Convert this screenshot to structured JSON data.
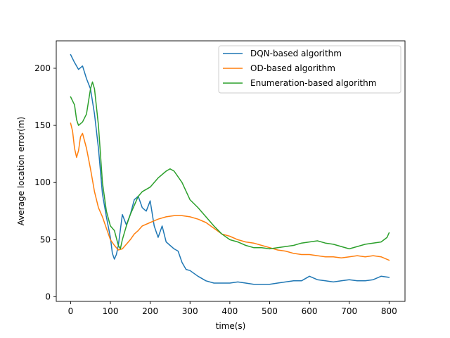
{
  "chart_data": {
    "type": "line",
    "title": "",
    "xlabel": "time(s)",
    "ylabel": "Average location error(m)",
    "xlim": [
      -36,
      840
    ],
    "ylim": [
      -4,
      224
    ],
    "xticks": [
      0,
      100,
      200,
      300,
      400,
      500,
      600,
      700,
      800
    ],
    "yticks": [
      0,
      50,
      100,
      150,
      200
    ],
    "grid": false,
    "legend_position": "top-right",
    "series": [
      {
        "name": "DQN-based algorithm",
        "color": "#1f77b4",
        "x": [
          0,
          10,
          20,
          30,
          40,
          50,
          60,
          70,
          80,
          90,
          100,
          105,
          110,
          115,
          120,
          130,
          140,
          150,
          160,
          170,
          180,
          190,
          200,
          210,
          220,
          230,
          240,
          250,
          260,
          270,
          280,
          290,
          300,
          320,
          340,
          360,
          380,
          400,
          420,
          440,
          460,
          480,
          500,
          520,
          540,
          560,
          580,
          600,
          620,
          640,
          660,
          680,
          700,
          720,
          740,
          760,
          780,
          800
        ],
        "values": [
          212,
          205,
          199,
          202,
          191,
          182,
          160,
          130,
          90,
          70,
          52,
          38,
          33,
          37,
          45,
          72,
          63,
          72,
          85,
          88,
          78,
          75,
          84,
          62,
          52,
          62,
          48,
          45,
          42,
          40,
          30,
          24,
          23,
          18,
          14,
          12,
          12,
          12,
          13,
          12,
          11,
          11,
          11,
          12,
          13,
          14,
          14,
          18,
          15,
          14,
          13,
          14,
          15,
          14,
          14,
          15,
          18,
          17
        ]
      },
      {
        "name": "OD-based algorithm",
        "color": "#ff7f0e",
        "x": [
          0,
          5,
          10,
          15,
          20,
          25,
          30,
          40,
          50,
          60,
          70,
          80,
          90,
          100,
          110,
          120,
          130,
          140,
          150,
          160,
          170,
          180,
          200,
          220,
          240,
          260,
          280,
          300,
          320,
          340,
          360,
          380,
          400,
          420,
          440,
          460,
          480,
          500,
          520,
          540,
          560,
          580,
          600,
          620,
          640,
          660,
          680,
          700,
          720,
          740,
          760,
          780,
          800
        ],
        "values": [
          152,
          145,
          130,
          122,
          128,
          140,
          143,
          130,
          112,
          92,
          78,
          70,
          60,
          50,
          45,
          41,
          42,
          46,
          50,
          55,
          58,
          62,
          65,
          68,
          70,
          71,
          71,
          70,
          68,
          65,
          60,
          55,
          53,
          50,
          48,
          47,
          45,
          43,
          41,
          40,
          38,
          37,
          37,
          36,
          35,
          35,
          34,
          35,
          36,
          35,
          36,
          35,
          32
        ]
      },
      {
        "name": "Enumeration-based algorithm",
        "color": "#2ca02c",
        "x": [
          0,
          10,
          15,
          20,
          30,
          40,
          50,
          55,
          60,
          70,
          80,
          90,
          100,
          110,
          120,
          125,
          130,
          140,
          150,
          160,
          170,
          180,
          200,
          220,
          240,
          250,
          260,
          280,
          300,
          320,
          340,
          360,
          380,
          400,
          420,
          440,
          460,
          480,
          500,
          520,
          540,
          560,
          580,
          600,
          620,
          640,
          660,
          680,
          700,
          720,
          740,
          760,
          780,
          795,
          800
        ],
        "values": [
          175,
          168,
          155,
          150,
          153,
          160,
          182,
          188,
          182,
          150,
          100,
          75,
          62,
          58,
          45,
          42,
          50,
          62,
          72,
          80,
          88,
          92,
          96,
          104,
          110,
          112,
          110,
          100,
          85,
          78,
          70,
          62,
          55,
          50,
          48,
          45,
          43,
          43,
          42,
          43,
          44,
          45,
          47,
          48,
          49,
          47,
          46,
          44,
          42,
          44,
          46,
          47,
          48,
          52,
          56
        ]
      }
    ]
  }
}
